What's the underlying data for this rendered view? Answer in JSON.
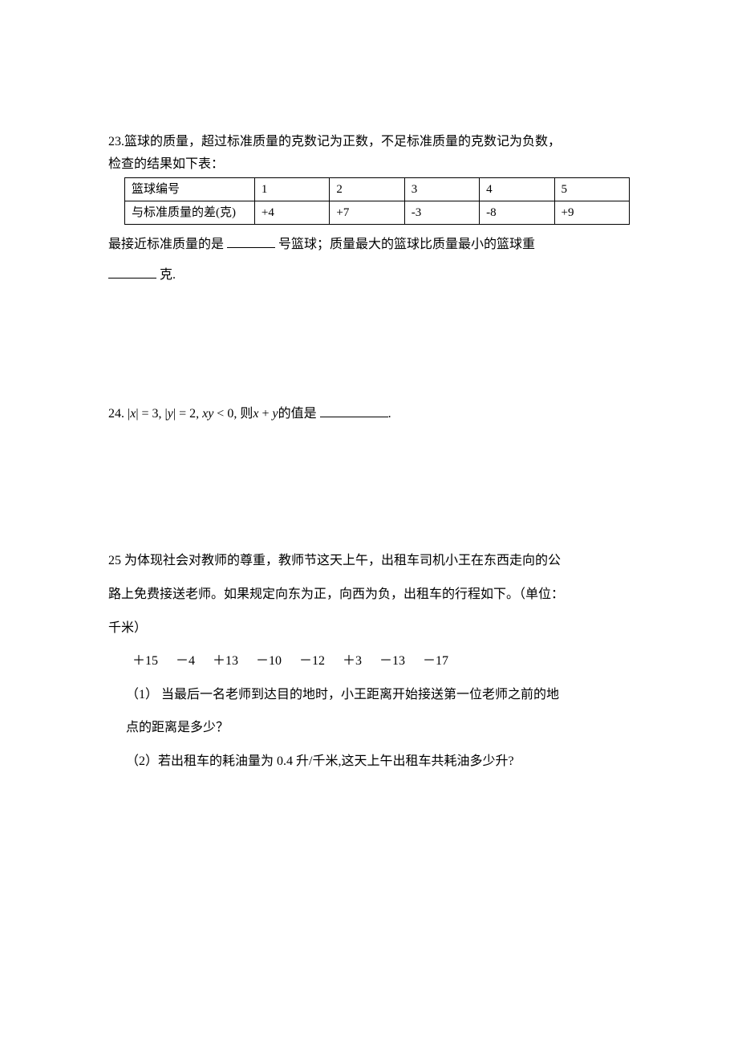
{
  "problem23": {
    "intro_line1": "23.篮球的质量，超过标准质量的克数记为正数，不足标准质量的克数记为负数，",
    "intro_line2": "检查的结果如下表：",
    "table": {
      "row1_label": "篮球编号",
      "row1_cells": [
        "1",
        "2",
        "3",
        "4",
        "5"
      ],
      "row2_label": "与标准质量的差(克)",
      "row2_cells": [
        "+4",
        "+7",
        "-3",
        "-8",
        "+9"
      ]
    },
    "fill_text1": "最接近标准质量的是 ",
    "fill_text2": " 号篮球；质量最大的篮球比质量最小的篮球重",
    "fill_text3": " 克."
  },
  "problem24": {
    "prefix": "24.  ",
    "math_expr": "|x| = 3, |y| = 2, xy < 0, 则 x + y 的值是 ",
    "suffix": "."
  },
  "problem25": {
    "line1": "25 为体现社会对教师的尊重，教师节这天上午，出租车司机小王在东西走向的公",
    "line2": "路上免费接送老师。如果规定向东为正，向西为负，出租车的行程如下。（单位：",
    "line3": "千米）",
    "data": "＋15  －4  ＋13  －10  －12  ＋3  －13  －17",
    "q1_line1": "（1） 当最后一名老师到达目的地时，小王距离开始接送第一位老师之前的地",
    "q1_line2": "点的距离是多少？",
    "q2": "（2）若出租车的耗油量为 0.4 升/千米,这天上午出租车共耗油多少升?"
  },
  "styles": {
    "background_color": "#ffffff",
    "text_color": "#000000",
    "border_color": "#000000",
    "font_size": 16,
    "font_family": "SimSun"
  }
}
